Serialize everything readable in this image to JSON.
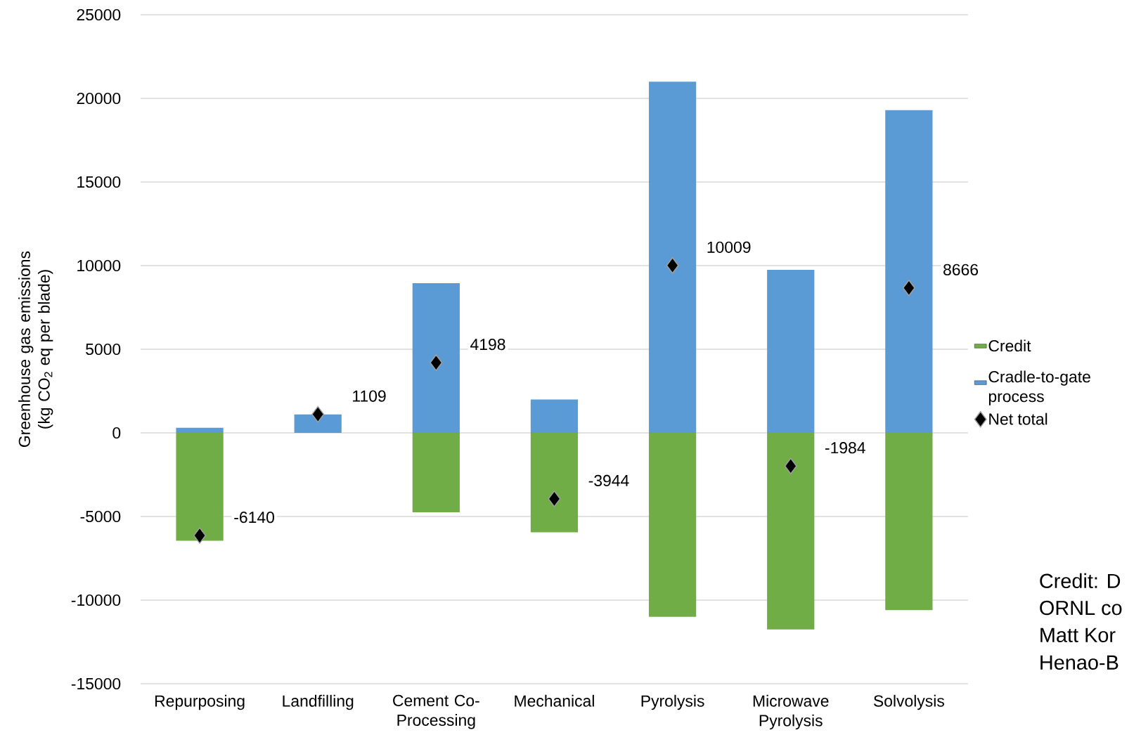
{
  "chart_data": {
    "type": "bar",
    "stacked": true,
    "ylabel": "Greenhouse gas emissions (kg CO$_{2}$ eq per blade)",
    "categories": [
      "Repurposing",
      "Landfilling",
      "Cement Co-Processing",
      "Mechanical",
      "Pyrolysis",
      "Microwave Pyrolysis",
      "Solvolysis"
    ],
    "series": [
      {
        "name": "Credit",
        "color": "#70ad47",
        "values": [
          -6450,
          0,
          -4750,
          -5950,
          -11000,
          -11750,
          -10600
        ]
      },
      {
        "name": "Cradle-to-gate process",
        "color": "#5b9bd5",
        "values": [
          300,
          1100,
          8950,
          2000,
          21000,
          9750,
          19300
        ]
      },
      {
        "name": "Net total",
        "type": "scatter",
        "color": "#000000",
        "marker": "diamond",
        "values": [
          -6140,
          1109,
          4198,
          -3944,
          10009,
          -1984,
          8666
        ],
        "value_labels": [
          "-6140",
          "1109",
          "4198",
          "-3944",
          "10009",
          "-1984",
          "8666"
        ]
      }
    ],
    "ylim": [
      -15000,
      25000
    ],
    "yticks": [
      -15000,
      -10000,
      -5000,
      0,
      5000,
      10000,
      15000,
      20000,
      25000
    ],
    "grid": "y",
    "legend": "right",
    "annotations": [
      "Credit: D",
      "ORNL co",
      "Matt Kor",
      "Henao-B"
    ]
  }
}
